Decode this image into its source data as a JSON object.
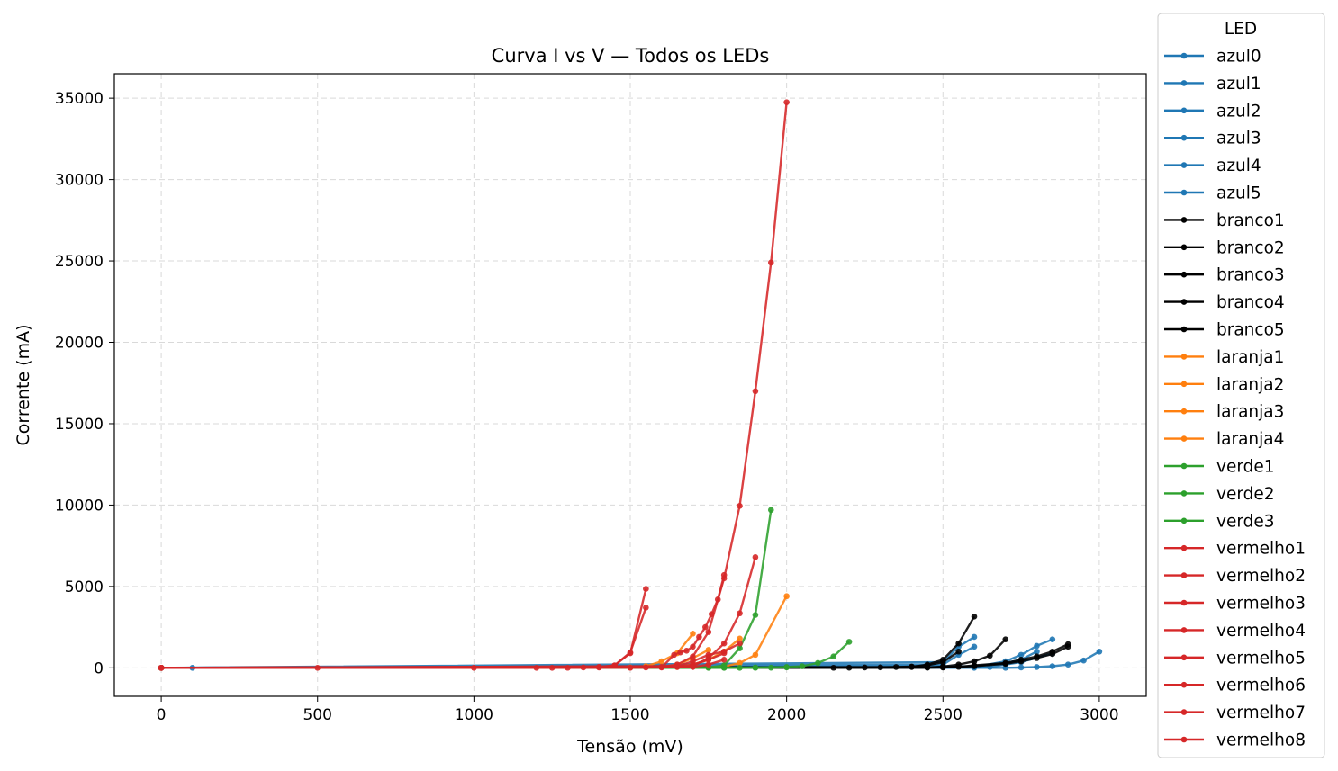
{
  "chart_data": {
    "type": "line",
    "title": "Curva I vs V — Todos os LEDs",
    "xlabel": "Tensão (mV)",
    "ylabel": "Corrente (mA)",
    "xlim": [
      -150,
      3150
    ],
    "ylim": [
      -1750,
      36500
    ],
    "xticks": [
      0,
      500,
      1000,
      1500,
      2000,
      2500,
      3000
    ],
    "yticks": [
      0,
      5000,
      10000,
      15000,
      20000,
      25000,
      30000,
      35000
    ],
    "grid": true,
    "legend": {
      "title": "LED",
      "placement": "outside-right"
    },
    "colors": {
      "azul": "#1f77b4",
      "branco": "#000000",
      "laranja": "#ff7f0e",
      "verde": "#2ca02c",
      "vermelho": "#d62728"
    },
    "series": [
      {
        "name": "azul0",
        "color": "#1f77b4",
        "x": [
          0,
          100,
          2600,
          2700,
          2750,
          2800,
          2850,
          2900,
          2950,
          3000
        ],
        "y": [
          0,
          0,
          0,
          0,
          20,
          50,
          100,
          200,
          450,
          1000
        ]
      },
      {
        "name": "azul1",
        "color": "#1f77b4",
        "x": [
          0,
          2500,
          2550,
          2600
        ],
        "y": [
          0,
          350,
          1300,
          1900
        ]
      },
      {
        "name": "azul2",
        "color": "#1f77b4",
        "x": [
          0,
          2600,
          2700,
          2750,
          2800,
          2850
        ],
        "y": [
          0,
          50,
          400,
          800,
          1350,
          1750
        ]
      },
      {
        "name": "azul3",
        "color": "#1f77b4",
        "x": [
          0,
          2600,
          2700,
          2750,
          2800
        ],
        "y": [
          0,
          100,
          300,
          500,
          1000
        ]
      },
      {
        "name": "azul4",
        "color": "#1f77b4",
        "x": [
          0,
          2500,
          2550,
          2600
        ],
        "y": [
          0,
          200,
          800,
          1300
        ]
      },
      {
        "name": "azul5",
        "color": "#1f77b4",
        "x": [
          0,
          2650,
          2750,
          2850
        ],
        "y": [
          0,
          50,
          350,
          900
        ]
      },
      {
        "name": "branco1",
        "color": "#000000",
        "x": [
          0,
          2400,
          2450,
          2500,
          2550,
          2600
        ],
        "y": [
          0,
          50,
          200,
          500,
          1500,
          3150
        ]
      },
      {
        "name": "branco2",
        "color": "#000000",
        "x": [
          0,
          2450,
          2500,
          2550,
          2600,
          2650,
          2700
        ],
        "y": [
          0,
          20,
          80,
          200,
          400,
          750,
          1750
        ]
      },
      {
        "name": "branco3",
        "color": "#000000",
        "x": [
          0,
          2500,
          2550,
          2600,
          2700,
          2750,
          2800,
          2850,
          2900
        ],
        "y": [
          0,
          20,
          60,
          150,
          300,
          500,
          700,
          1000,
          1450
        ]
      },
      {
        "name": "branco4",
        "color": "#000000",
        "x": [
          0,
          2150,
          2200,
          2250,
          2300,
          2350,
          2400,
          2450,
          2500,
          2550
        ],
        "y": [
          0,
          5,
          10,
          20,
          30,
          50,
          80,
          150,
          350,
          1000
        ]
      },
      {
        "name": "branco5",
        "color": "#000000",
        "x": [
          0,
          2450,
          2500,
          2600,
          2700,
          2750,
          2800,
          2850,
          2900
        ],
        "y": [
          0,
          10,
          40,
          100,
          250,
          400,
          600,
          850,
          1300
        ]
      },
      {
        "name": "laranja1",
        "color": "#ff7f0e",
        "x": [
          0,
          1500,
          1550,
          1600,
          1650,
          1700
        ],
        "y": [
          0,
          20,
          100,
          400,
          900,
          2100
        ]
      },
      {
        "name": "laranja2",
        "color": "#ff7f0e",
        "x": [
          0,
          1600,
          1650,
          1700,
          1750
        ],
        "y": [
          0,
          50,
          200,
          600,
          1100
        ]
      },
      {
        "name": "laranja3",
        "color": "#ff7f0e",
        "x": [
          0,
          1650,
          1700,
          1750,
          1800,
          1850
        ],
        "y": [
          0,
          50,
          200,
          500,
          1000,
          1800
        ]
      },
      {
        "name": "laranja4",
        "color": "#ff7f0e",
        "x": [
          0,
          1750,
          1800,
          1850,
          1900,
          2000
        ],
        "y": [
          0,
          20,
          80,
          300,
          800,
          4400
        ]
      },
      {
        "name": "verde1",
        "color": "#2ca02c",
        "x": [
          0,
          1750,
          1800,
          1850,
          1900,
          1950
        ],
        "y": [
          0,
          20,
          150,
          1200,
          3250,
          9700
        ]
      },
      {
        "name": "verde2",
        "color": "#2ca02c",
        "x": [
          0,
          1800,
          1900,
          2000,
          2050,
          2100,
          2150,
          2200
        ],
        "y": [
          0,
          10,
          20,
          50,
          100,
          300,
          700,
          1600
        ]
      },
      {
        "name": "verde3",
        "color": "#2ca02c",
        "x": [
          0,
          1750,
          1800,
          1850,
          1900,
          1950,
          2000
        ],
        "y": [
          0,
          0,
          0,
          0,
          5,
          10,
          30
        ]
      },
      {
        "name": "vermelho1",
        "color": "#d62728",
        "x": [
          0,
          500,
          1000,
          1200,
          1250,
          1300,
          1350,
          1400,
          1450,
          1500,
          1550
        ],
        "y": [
          0,
          0,
          0,
          0,
          0,
          5,
          20,
          60,
          150,
          900,
          4850
        ]
      },
      {
        "name": "vermelho2",
        "color": "#d62728",
        "x": [
          0,
          1400,
          1450,
          1500,
          1550
        ],
        "y": [
          0,
          20,
          150,
          950,
          3700
        ]
      },
      {
        "name": "vermelho3",
        "color": "#d62728",
        "x": [
          0,
          1500,
          1550,
          1600,
          1650,
          1700,
          1750,
          1800,
          1850,
          1900,
          1950,
          2000
        ],
        "y": [
          0,
          5,
          20,
          60,
          200,
          700,
          2200,
          5500,
          9950,
          17000,
          24900,
          34750
        ]
      },
      {
        "name": "vermelho4",
        "color": "#d62728",
        "x": [
          0,
          1600,
          1640,
          1660,
          1680,
          1700,
          1720,
          1740,
          1760,
          1780,
          1800
        ],
        "y": [
          0,
          20,
          800,
          950,
          1050,
          1300,
          1900,
          2500,
          3300,
          4200,
          5700
        ]
      },
      {
        "name": "vermelho5",
        "color": "#d62728",
        "x": [
          0,
          1700,
          1750,
          1800,
          1850,
          1900
        ],
        "y": [
          0,
          100,
          600,
          1500,
          3350,
          6800
        ]
      },
      {
        "name": "vermelho6",
        "color": "#d62728",
        "x": [
          0,
          1650,
          1700,
          1750,
          1800,
          1850
        ],
        "y": [
          0,
          100,
          400,
          800,
          1000,
          1500
        ]
      },
      {
        "name": "vermelho7",
        "color": "#d62728",
        "x": [
          0,
          1650,
          1700,
          1750,
          1800
        ],
        "y": [
          0,
          50,
          200,
          500,
          900
        ]
      },
      {
        "name": "vermelho8",
        "color": "#d62728",
        "x": [
          0,
          1700,
          1750,
          1800
        ],
        "y": [
          0,
          50,
          200,
          500
        ]
      }
    ]
  }
}
